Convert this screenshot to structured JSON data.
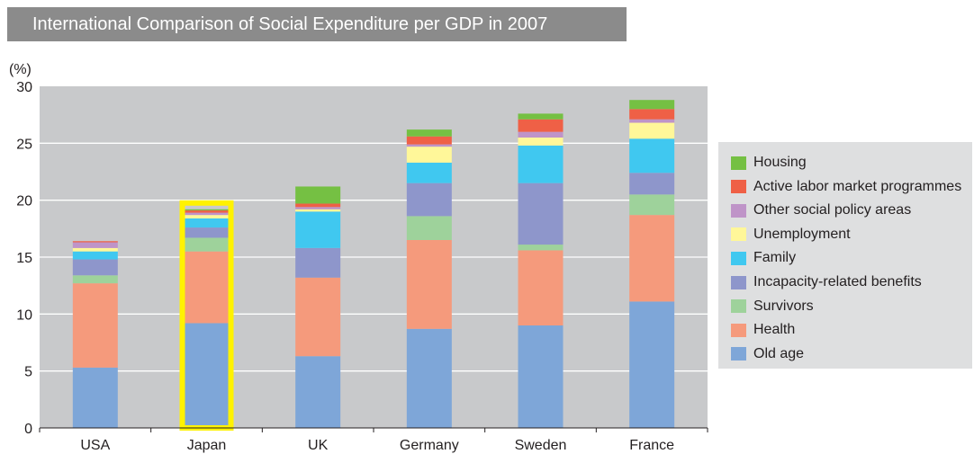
{
  "title": "International Comparison of Social Expenditure per GDP in 2007",
  "colors": {
    "plot_background": "#c8c9cb",
    "highlight_border": "#fff200",
    "legend_background": "#dedfe0",
    "title_background": "#8b8b8b"
  },
  "chart_data": {
    "type": "bar",
    "stacked": true,
    "title": "International Comparison of Social Expenditure per GDP in 2007",
    "ylabel": "(%)",
    "xlabel": "",
    "ylim": [
      0,
      30
    ],
    "yticks": [
      0,
      5,
      10,
      15,
      20,
      25,
      30
    ],
    "grid": true,
    "legend_position": "right",
    "highlighted_category": "Japan",
    "categories": [
      "USA",
      "Japan",
      "UK",
      "Germany",
      "Sweden",
      "France"
    ],
    "series": [
      {
        "name": "Old age",
        "color": "#7ea6d8",
        "values": [
          5.3,
          9.2,
          6.3,
          8.7,
          9.0,
          11.1
        ]
      },
      {
        "name": "Health",
        "color": "#f59a7c",
        "values": [
          7.4,
          6.3,
          6.9,
          7.8,
          6.6,
          7.6
        ]
      },
      {
        "name": "Survivors",
        "color": "#9ed29b",
        "values": [
          0.7,
          1.2,
          0.0,
          2.1,
          0.5,
          1.8
        ]
      },
      {
        "name": "Incapacity-related benefits",
        "color": "#8e96cb",
        "values": [
          1.4,
          0.9,
          2.6,
          2.9,
          5.4,
          1.9
        ]
      },
      {
        "name": "Family",
        "color": "#40c8f0",
        "values": [
          0.7,
          0.8,
          3.2,
          1.8,
          3.3,
          3.0
        ]
      },
      {
        "name": "Unemployment",
        "color": "#fff799",
        "values": [
          0.3,
          0.3,
          0.2,
          1.4,
          0.7,
          1.4
        ]
      },
      {
        "name": "Other social policy areas",
        "color": "#bf94c8",
        "values": [
          0.5,
          0.2,
          0.2,
          0.2,
          0.5,
          0.3
        ]
      },
      {
        "name": "Active labor market programmes",
        "color": "#ef6046",
        "values": [
          0.1,
          0.2,
          0.3,
          0.7,
          1.1,
          0.9
        ]
      },
      {
        "name": "Housing",
        "color": "#75c043",
        "values": [
          0.0,
          0.1,
          1.5,
          0.6,
          0.5,
          0.8
        ]
      }
    ]
  }
}
